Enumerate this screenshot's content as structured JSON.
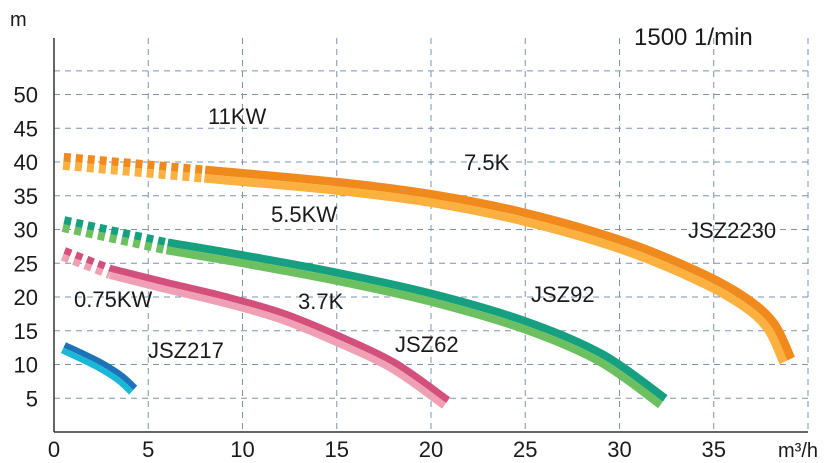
{
  "chart_data": {
    "type": "line",
    "title": "1500 1/min",
    "xlabel": "m³/h",
    "ylabel": "m",
    "xlim": [
      0,
      40
    ],
    "ylim": [
      0,
      55
    ],
    "x_ticks": [
      "0",
      "5",
      "10",
      "15",
      "20",
      "25",
      "30",
      "35"
    ],
    "y_ticks": [
      "5",
      "10",
      "15",
      "20",
      "25",
      "30",
      "35",
      "40",
      "45",
      "50"
    ],
    "grid": true,
    "series": [
      {
        "name": "JSZ217",
        "color_top": "#1ab8d8",
        "color_bottom": "#1e72b8",
        "dashed_x": [
          0.5,
          0.5
        ],
        "points": [
          [
            0.5,
            12.5
          ],
          [
            1.5,
            11.2
          ],
          [
            2.5,
            9.8
          ],
          [
            3.5,
            8.0
          ],
          [
            4.2,
            6.2
          ]
        ]
      },
      {
        "name": "JSZ62",
        "color_top": "#f0a0b4",
        "color_bottom": "#d4507c",
        "dashed_x": [
          0.5,
          3.0
        ],
        "points": [
          [
            0.5,
            26.4
          ],
          [
            3.0,
            23.7
          ],
          [
            6,
            21.6
          ],
          [
            9,
            19.6
          ],
          [
            12,
            17.2
          ],
          [
            15,
            13.8
          ],
          [
            18,
            9.8
          ],
          [
            20.8,
            4.3
          ]
        ]
      },
      {
        "name": "JSZ92",
        "color_top": "#6cc060",
        "color_bottom": "#16a080",
        "dashed_x": [
          0.5,
          6.0
        ],
        "points": [
          [
            0.5,
            30.8
          ],
          [
            6.0,
            27.5
          ],
          [
            10,
            25.6
          ],
          [
            15,
            23.0
          ],
          [
            20,
            19.9
          ],
          [
            25,
            15.8
          ],
          [
            29,
            11.0
          ],
          [
            32.3,
            4.5
          ]
        ]
      },
      {
        "name": "JSZ2230",
        "color_top": "#fbb040",
        "color_bottom": "#f08a1c",
        "dashed_x": [
          0.5,
          8.0
        ],
        "points": [
          [
            0.5,
            40.1
          ],
          [
            8.0,
            38.2
          ],
          [
            15,
            36.4
          ],
          [
            20,
            34.6
          ],
          [
            25,
            31.8
          ],
          [
            30,
            27.8
          ],
          [
            34,
            23.3
          ],
          [
            36.5,
            19.5
          ],
          [
            38,
            15.8
          ],
          [
            38.9,
            10.6
          ]
        ]
      }
    ],
    "annotations": [
      "11KW",
      "7.5K",
      "5.5KW",
      "3.7K",
      "0.75KW",
      "JSZ2230",
      "JSZ92",
      "JSZ62",
      "JSZ217"
    ]
  }
}
